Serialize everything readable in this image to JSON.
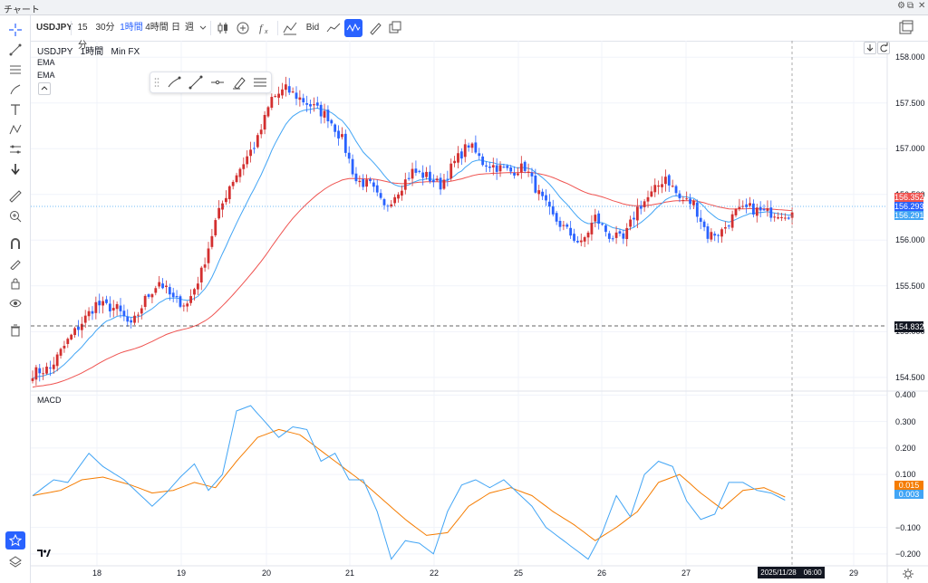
{
  "window": {
    "title": "チャート",
    "controls": [
      "⚙",
      "⧉",
      "✕"
    ]
  },
  "toolbar": {
    "symbol": "USDJPY",
    "intervals": [
      "15分",
      "30分",
      "1時間",
      "4時間",
      "日",
      "週"
    ],
    "active_interval": "1時間",
    "price_type": "Bid"
  },
  "legend": {
    "symbol": "USDJPY",
    "interval": "1時間",
    "source": "Min FX",
    "indicators": [
      "EMA",
      "EMA"
    ],
    "pane2": "MACD"
  },
  "price_axis": {
    "ticks": [
      "158.000",
      "157.500",
      "157.000",
      "156.500",
      "156.000",
      "155.500",
      "155.000",
      "154.500"
    ],
    "tags": {
      "ema_slow": "156.352",
      "last": "156.293",
      "ema_fast": "156.291",
      "ref_line": "154.832"
    },
    "colors": {
      "ema_slow": "#ef5350",
      "last": "#2962ff",
      "ema_fast": "#42a5f5",
      "ref_line": "#131722"
    }
  },
  "macd_axis": {
    "ticks": [
      "0.400",
      "0.300",
      "0.200",
      "0.100",
      "−0.100",
      "−0.200"
    ],
    "tags": {
      "signal": "0.015",
      "macd": "0.003"
    },
    "colors": {
      "signal": "#f57c00",
      "macd": "#42a5f5"
    }
  },
  "time_axis": {
    "labels": [
      "18",
      "19",
      "20",
      "21",
      "22",
      "25",
      "26",
      "27",
      "29"
    ],
    "cursor_label": "2025/11/28　06:00"
  },
  "colors": {
    "up": "#d32f2f",
    "down": "#2962ff",
    "ema_fast": "#42a5f5",
    "ema_slow": "#ef5350",
    "macd": "#42a5f5",
    "signal": "#f57c00"
  },
  "chart_data": {
    "type": "candlestick",
    "ylim": [
      154.35,
      158.18
    ],
    "macd_ylim": [
      -0.245,
      0.415
    ],
    "anchors": [
      [
        0,
        154.55
      ],
      [
        5,
        154.6
      ],
      [
        10,
        154.9
      ],
      [
        14,
        155.1
      ],
      [
        18,
        155.3
      ],
      [
        24,
        155.25
      ],
      [
        28,
        155.05
      ],
      [
        32,
        155.35
      ],
      [
        36,
        155.55
      ],
      [
        40,
        155.35
      ],
      [
        44,
        155.3
      ],
      [
        48,
        155.65
      ],
      [
        52,
        156.2
      ],
      [
        56,
        156.6
      ],
      [
        60,
        156.85
      ],
      [
        64,
        157.1
      ],
      [
        68,
        157.55
      ],
      [
        72,
        157.65
      ],
      [
        76,
        157.55
      ],
      [
        80,
        157.45
      ],
      [
        84,
        157.35
      ],
      [
        88,
        157.1
      ],
      [
        92,
        156.65
      ],
      [
        96,
        156.6
      ],
      [
        100,
        156.35
      ],
      [
        104,
        156.55
      ],
      [
        108,
        156.75
      ],
      [
        112,
        156.7
      ],
      [
        116,
        156.6
      ],
      [
        120,
        156.85
      ],
      [
        124,
        157.05
      ],
      [
        128,
        156.85
      ],
      [
        132,
        156.8
      ],
      [
        136,
        156.75
      ],
      [
        140,
        156.8
      ],
      [
        144,
        156.5
      ],
      [
        148,
        156.25
      ],
      [
        152,
        156.1
      ],
      [
        156,
        155.95
      ],
      [
        160,
        156.25
      ],
      [
        164,
        156.05
      ],
      [
        168,
        156.0
      ],
      [
        172,
        156.35
      ],
      [
        176,
        156.5
      ],
      [
        180,
        156.7
      ],
      [
        184,
        156.45
      ],
      [
        188,
        156.4
      ],
      [
        192,
        156.05
      ],
      [
        196,
        156.1
      ],
      [
        200,
        156.3
      ],
      [
        204,
        156.35
      ],
      [
        208,
        156.3
      ],
      [
        212,
        156.3
      ],
      [
        216,
        156.29
      ]
    ],
    "macd_anchors": [
      [
        0,
        0.02
      ],
      [
        6,
        0.08
      ],
      [
        10,
        0.07
      ],
      [
        16,
        0.18
      ],
      [
        20,
        0.13
      ],
      [
        26,
        0.08
      ],
      [
        30,
        0.03
      ],
      [
        34,
        -0.02
      ],
      [
        38,
        0.03
      ],
      [
        42,
        0.09
      ],
      [
        46,
        0.14
      ],
      [
        50,
        0.04
      ],
      [
        54,
        0.1
      ],
      [
        58,
        0.34
      ],
      [
        62,
        0.36
      ],
      [
        66,
        0.3
      ],
      [
        70,
        0.24
      ],
      [
        74,
        0.28
      ],
      [
        78,
        0.27
      ],
      [
        82,
        0.15
      ],
      [
        86,
        0.18
      ],
      [
        90,
        0.08
      ],
      [
        94,
        0.08
      ],
      [
        98,
        -0.04
      ],
      [
        102,
        -0.22
      ],
      [
        106,
        -0.15
      ],
      [
        110,
        -0.16
      ],
      [
        114,
        -0.2
      ],
      [
        118,
        -0.04
      ],
      [
        122,
        0.06
      ],
      [
        126,
        0.08
      ],
      [
        130,
        0.05
      ],
      [
        134,
        0.08
      ],
      [
        138,
        0.03
      ],
      [
        142,
        -0.02
      ],
      [
        146,
        -0.1
      ],
      [
        150,
        -0.14
      ],
      [
        154,
        -0.18
      ],
      [
        158,
        -0.22
      ],
      [
        162,
        -0.12
      ],
      [
        166,
        0.02
      ],
      [
        170,
        -0.06
      ],
      [
        174,
        0.1
      ],
      [
        178,
        0.15
      ],
      [
        182,
        0.13
      ],
      [
        186,
        0.0
      ],
      [
        190,
        -0.07
      ],
      [
        194,
        -0.05
      ],
      [
        198,
        0.07
      ],
      [
        202,
        0.07
      ],
      [
        206,
        0.04
      ],
      [
        210,
        0.03
      ],
      [
        214,
        0.003
      ]
    ],
    "signal_anchors": [
      [
        0,
        0.02
      ],
      [
        8,
        0.04
      ],
      [
        14,
        0.08
      ],
      [
        20,
        0.09
      ],
      [
        28,
        0.06
      ],
      [
        34,
        0.03
      ],
      [
        40,
        0.04
      ],
      [
        46,
        0.07
      ],
      [
        52,
        0.05
      ],
      [
        58,
        0.15
      ],
      [
        64,
        0.24
      ],
      [
        70,
        0.27
      ],
      [
        76,
        0.25
      ],
      [
        82,
        0.19
      ],
      [
        88,
        0.13
      ],
      [
        94,
        0.07
      ],
      [
        100,
        0.0
      ],
      [
        106,
        -0.07
      ],
      [
        112,
        -0.13
      ],
      [
        118,
        -0.12
      ],
      [
        124,
        -0.02
      ],
      [
        130,
        0.03
      ],
      [
        136,
        0.05
      ],
      [
        142,
        0.02
      ],
      [
        148,
        -0.04
      ],
      [
        154,
        -0.09
      ],
      [
        160,
        -0.15
      ],
      [
        166,
        -0.1
      ],
      [
        172,
        -0.04
      ],
      [
        178,
        0.07
      ],
      [
        184,
        0.1
      ],
      [
        190,
        0.03
      ],
      [
        196,
        -0.03
      ],
      [
        202,
        0.04
      ],
      [
        208,
        0.05
      ],
      [
        214,
        0.015
      ]
    ]
  }
}
